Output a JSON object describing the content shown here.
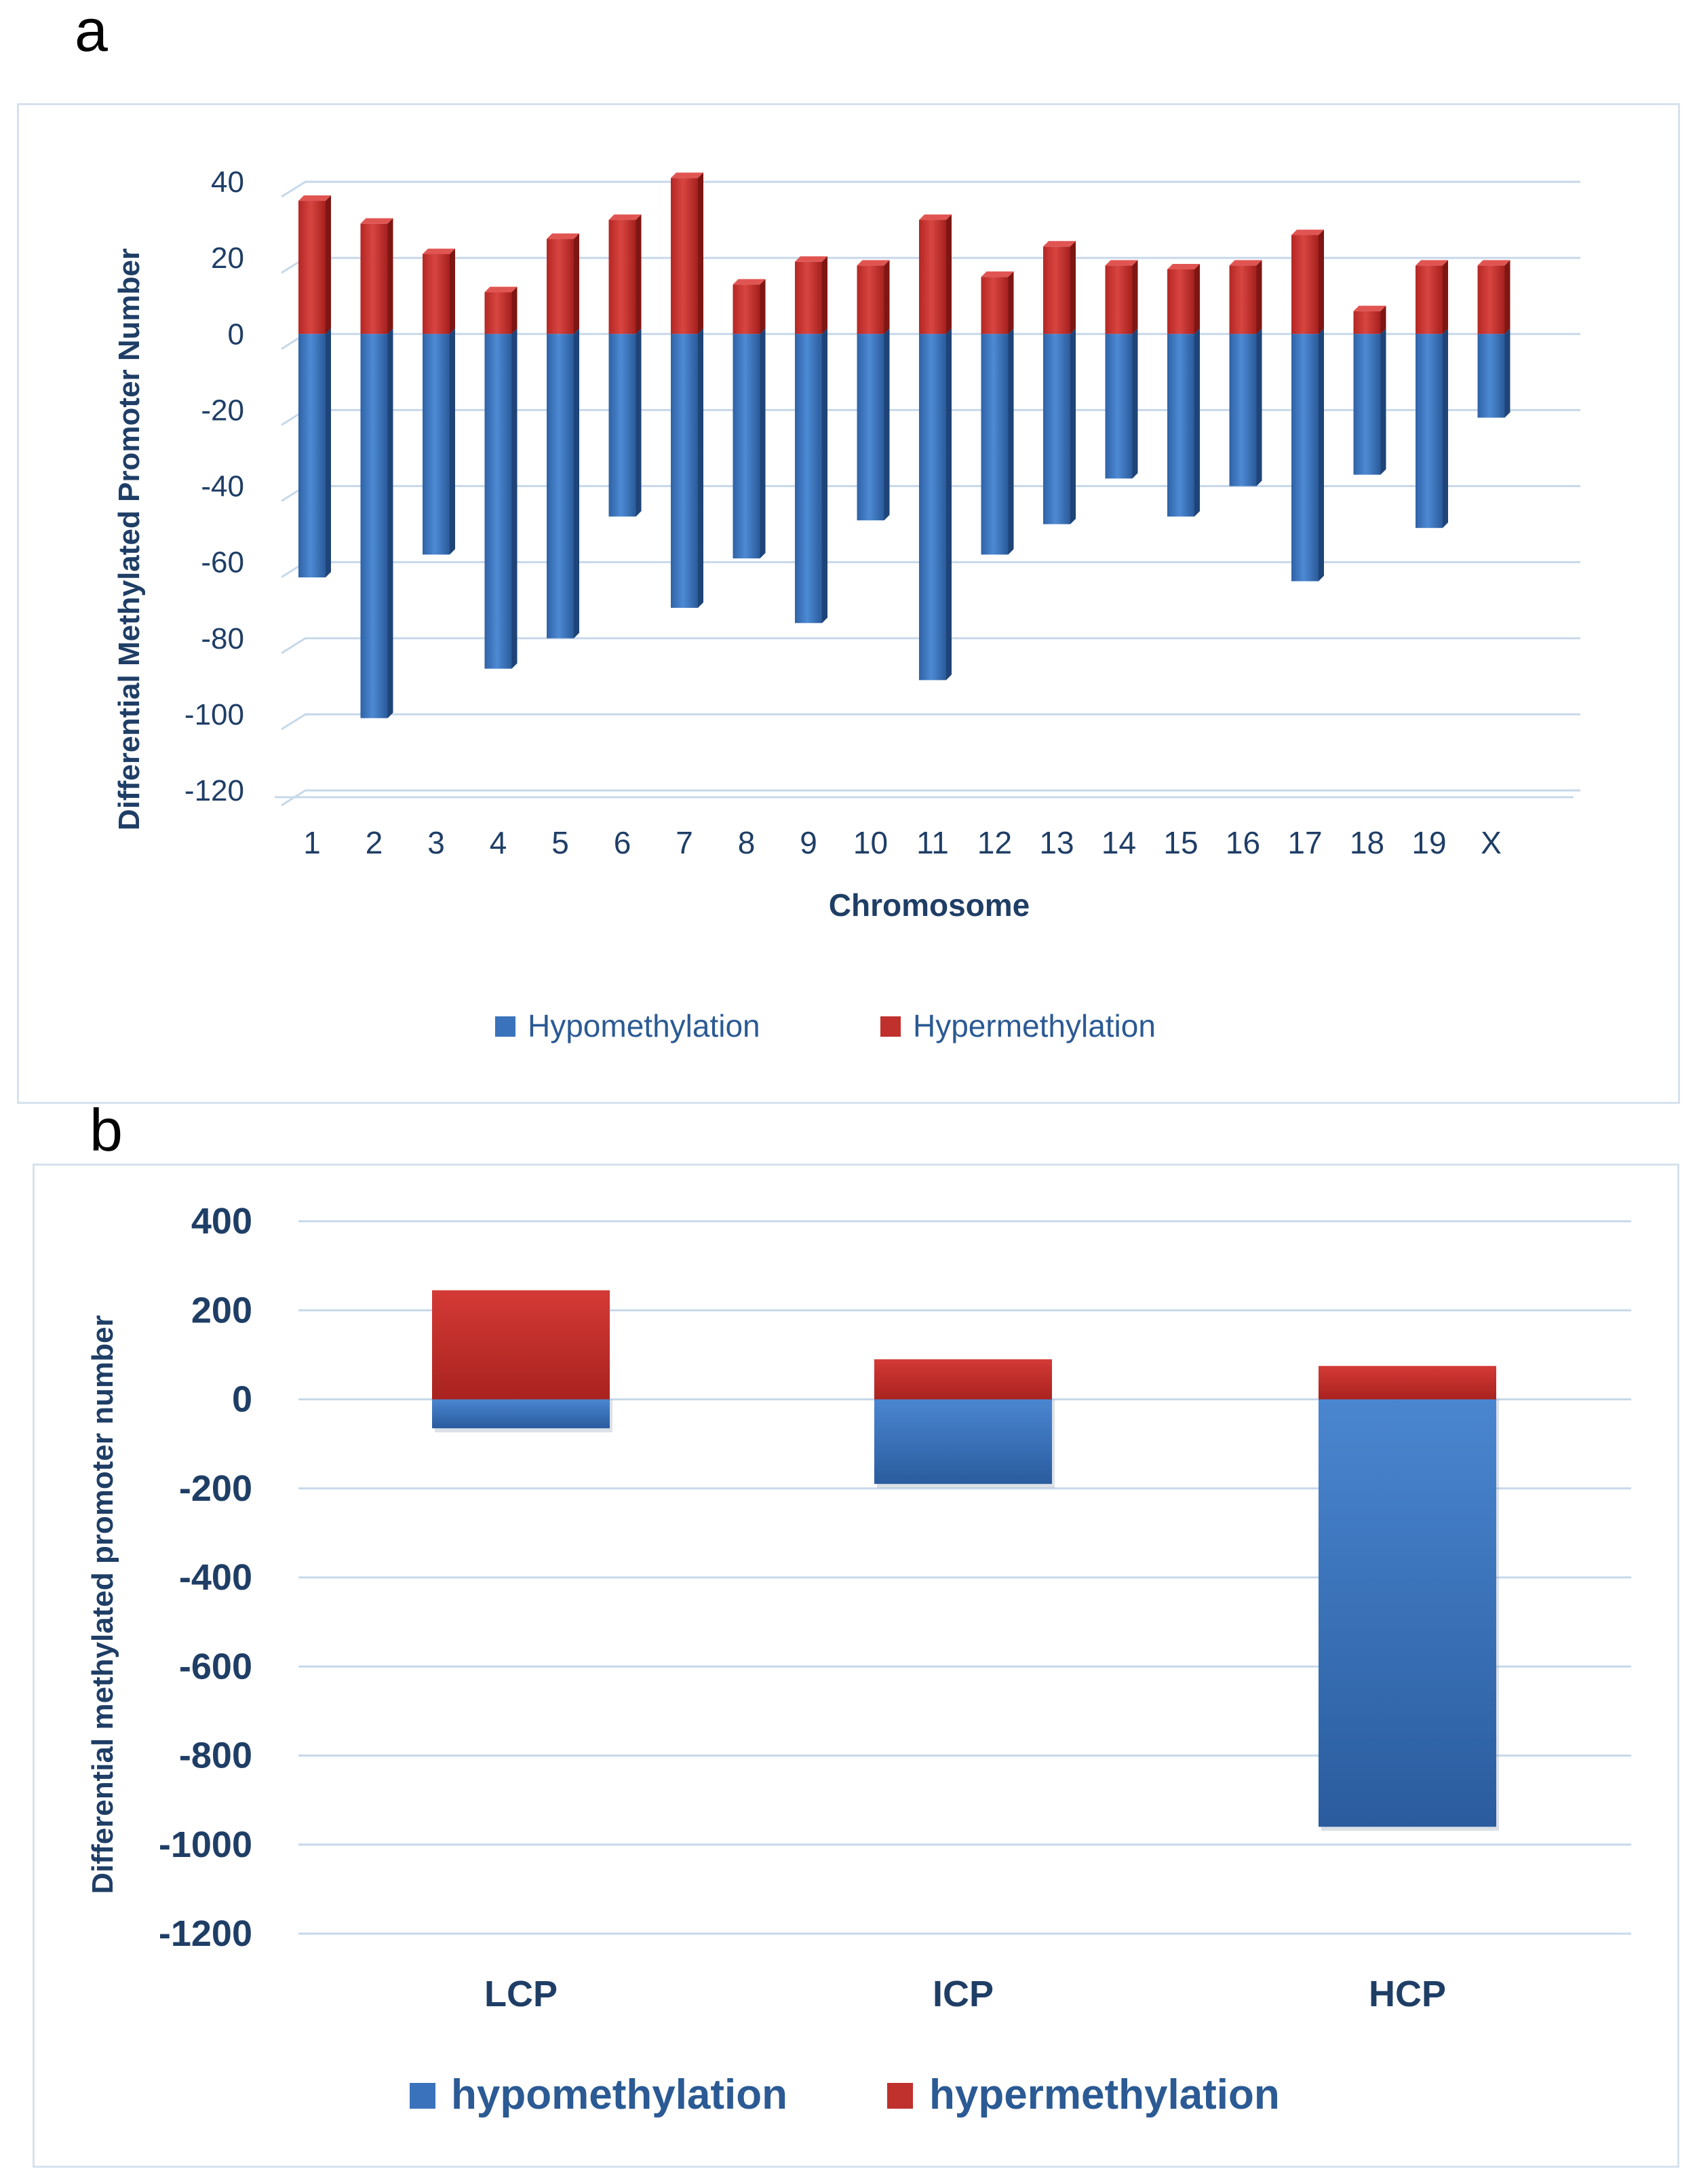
{
  "panels": {
    "a_label": "a",
    "b_label": "b"
  },
  "colors": {
    "hypo_top": "#4a86d0",
    "hypo_bottom": "#2a5c9e",
    "hypo_side": "#1e4478",
    "hyper_top": "#d43a36",
    "hyper_bottom": "#a9221f",
    "hyper_side": "#7e1613",
    "grid": "#c7d8ea",
    "text": "#1f3e66"
  },
  "chart_data": [
    {
      "type": "bar",
      "stacked": "diverging",
      "title": "",
      "xlabel": "Chromosome",
      "ylabel": "Differential Methylated Promoter Number",
      "ylim": [
        -120,
        40
      ],
      "yticks": [
        "40",
        "20",
        "0",
        "-20",
        "-40",
        "-60",
        "-80",
        "-100",
        "-120"
      ],
      "ytick_values": [
        40,
        20,
        0,
        -20,
        -40,
        -60,
        -80,
        -100,
        -120
      ],
      "categories": [
        "1",
        "2",
        "3",
        "4",
        "5",
        "6",
        "7",
        "8",
        "9",
        "10",
        "11",
        "12",
        "13",
        "14",
        "15",
        "16",
        "17",
        "18",
        "19",
        "X"
      ],
      "series": [
        {
          "name": "Hypomethylation",
          "values": [
            -64,
            -101,
            -58,
            -88,
            -80,
            -48,
            -72,
            -59,
            -76,
            -49,
            -91,
            -58,
            -50,
            -38,
            -48,
            -40,
            -65,
            -37,
            -51,
            -22
          ]
        },
        {
          "name": "Hypermethylation",
          "values": [
            35,
            29,
            21,
            11,
            25,
            30,
            41,
            13,
            19,
            18,
            30,
            15,
            23,
            18,
            17,
            18,
            26,
            6,
            18,
            18
          ]
        }
      ],
      "legend": [
        "Hypomethylation",
        "Hypermethylation"
      ],
      "legend_position": "bottom",
      "grid": true
    },
    {
      "type": "bar",
      "stacked": "diverging",
      "title": "",
      "xlabel": "",
      "ylabel": "Differential methylated promoter number",
      "ylim": [
        -1200,
        400
      ],
      "yticks": [
        "400",
        "200",
        "0",
        "-200",
        "-400",
        "-600",
        "-800",
        "-1000",
        "-1200"
      ],
      "ytick_values": [
        400,
        200,
        0,
        -200,
        -400,
        -600,
        -800,
        -1000,
        -1200
      ],
      "categories": [
        "LCP",
        "ICP",
        "HCP"
      ],
      "series": [
        {
          "name": "hypomethylation",
          "values": [
            -65,
            -190,
            -960
          ]
        },
        {
          "name": "hypermethylation",
          "values": [
            245,
            90,
            75
          ]
        }
      ],
      "legend": [
        "hypomethylation",
        "hypermethylation"
      ],
      "legend_position": "bottom",
      "grid": true
    }
  ]
}
